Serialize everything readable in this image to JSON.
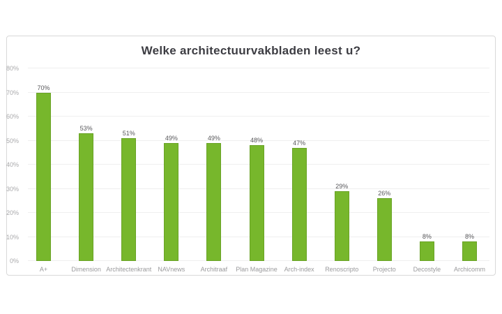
{
  "chart_data": {
    "type": "bar",
    "title": "Welke architectuurvakbladen leest u?",
    "categories": [
      "A+",
      "Dimension",
      "Architectenkrant",
      "NAVnews",
      "Architraaf",
      "Plan Magazine",
      "Arch-index",
      "Renoscripto",
      "Projecto",
      "Decostyle",
      "Archicomm"
    ],
    "values": [
      70,
      53,
      51,
      49,
      49,
      48,
      47,
      29,
      26,
      8,
      8
    ],
    "value_labels": [
      "70%",
      "53%",
      "51%",
      "49%",
      "49%",
      "48%",
      "47%",
      "29%",
      "26%",
      "8%",
      "8%"
    ],
    "xlabel": "",
    "ylabel": "",
    "ylim": [
      0,
      80
    ],
    "ytick_labels": [
      "0%",
      "10%",
      "20%",
      "30%",
      "40%",
      "50%",
      "60%",
      "70%",
      "80%"
    ],
    "grid": true,
    "legend": false,
    "colors": {
      "bar_fill": "#77b72c",
      "bar_border": "#69a325",
      "gridline": "#efefef",
      "title_text": "#3c3c42",
      "value_text": "#57575a",
      "axis_text": "#a9a9ab",
      "category_text": "#9a9a9c",
      "card_border": "#d8d8d8"
    }
  }
}
